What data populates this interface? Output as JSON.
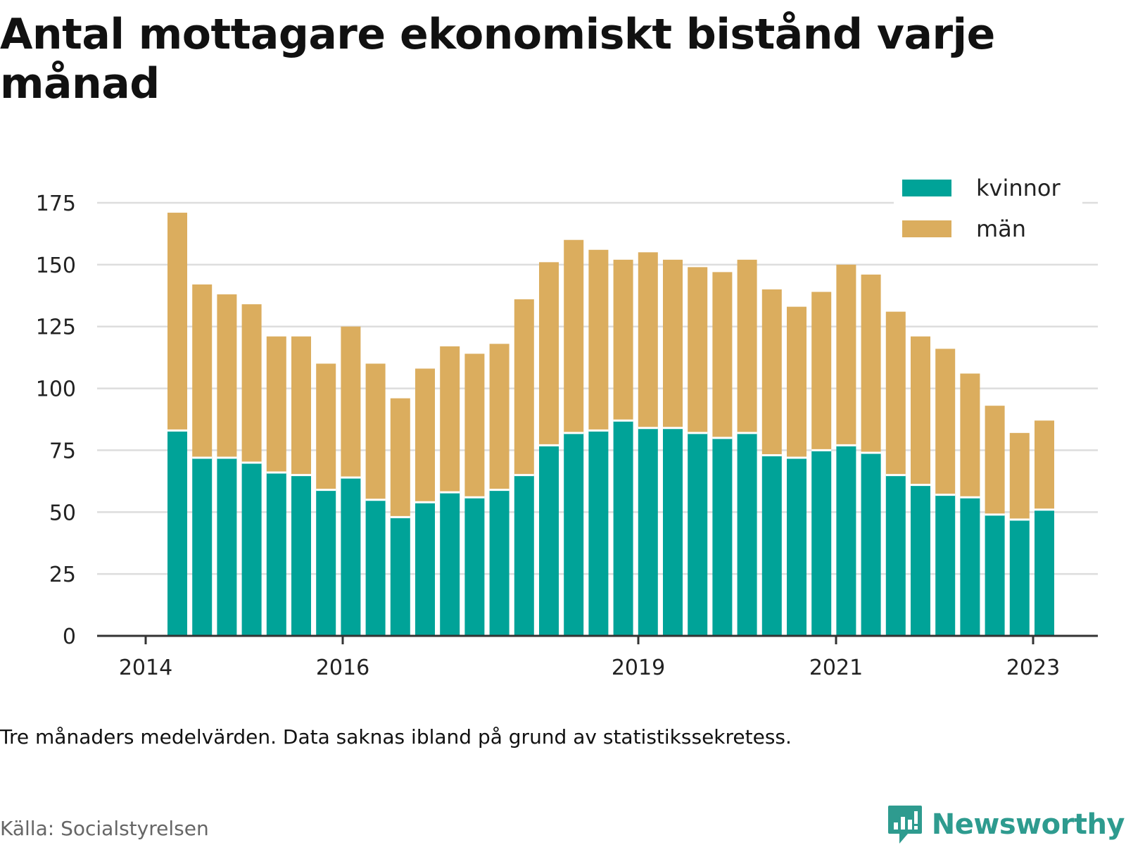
{
  "title": "Antal mottagare ekonomiskt bistånd varje månad",
  "note": "Tre månaders medelvärden. Data saknas ibland på grund av statistikssekretess.",
  "source": "Källa: Socialstyrelsen",
  "brand": "Newsworthy",
  "colors": {
    "kvinnor": "#00a398",
    "man": "#dbad5e",
    "grid": "#dddddd",
    "axis": "#333333",
    "brand": "#2e9b8f"
  },
  "chart_data": {
    "type": "bar",
    "stacked": true,
    "x_tick_labels": [
      "2014",
      "2016",
      "2019",
      "2021",
      "2023"
    ],
    "y_ticks": [
      0,
      25,
      50,
      75,
      100,
      125,
      150,
      175
    ],
    "ylim": [
      0,
      175
    ],
    "grid": true,
    "legend_position": "top-right",
    "series": [
      {
        "name": "kvinnor",
        "values": [
          83,
          72,
          72,
          70,
          66,
          65,
          59,
          64,
          55,
          48,
          54,
          58,
          56,
          59,
          65,
          77,
          82,
          83,
          87,
          84,
          84,
          82,
          80,
          82,
          73,
          72,
          75,
          77,
          74,
          65,
          61,
          57,
          56,
          49,
          47,
          51
        ]
      },
      {
        "name": "män",
        "values": [
          88,
          70,
          66,
          64,
          55,
          56,
          51,
          61,
          55,
          48,
          54,
          59,
          58,
          59,
          71,
          74,
          78,
          73,
          65,
          71,
          68,
          67,
          67,
          70,
          67,
          61,
          64,
          73,
          72,
          66,
          60,
          59,
          50,
          44,
          35,
          36
        ]
      }
    ]
  }
}
